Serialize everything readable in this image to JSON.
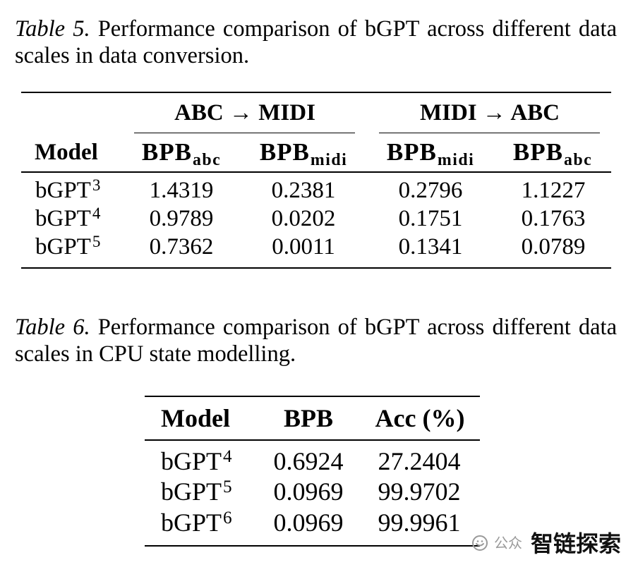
{
  "table5": {
    "caption": {
      "label": "Table 5.",
      "text": "Performance comparison of bGPT across different data scales in data conversion."
    },
    "groups": [
      "ABC → MIDI",
      "MIDI → ABC"
    ],
    "header": {
      "model": "Model",
      "cols": [
        {
          "label": "BPB",
          "sub": "abc"
        },
        {
          "label": "BPB",
          "sub": "midi"
        },
        {
          "label": "BPB",
          "sub": "midi"
        },
        {
          "label": "BPB",
          "sub": "abc"
        }
      ]
    },
    "rows": [
      {
        "model": "bGPT",
        "sup": "3",
        "values": [
          "1.4319",
          "0.2381",
          "0.2796",
          "1.1227"
        ]
      },
      {
        "model": "bGPT",
        "sup": "4",
        "values": [
          "0.9789",
          "0.0202",
          "0.1751",
          "0.1763"
        ]
      },
      {
        "model": "bGPT",
        "sup": "5",
        "values": [
          "0.7362",
          "0.0011",
          "0.1341",
          "0.0789"
        ]
      }
    ]
  },
  "table6": {
    "caption": {
      "label": "Table 6.",
      "text": "Performance comparison of bGPT across different data scales in CPU state modelling."
    },
    "header": {
      "model": "Model",
      "cols": [
        "BPB",
        "Acc (%)"
      ]
    },
    "rows": [
      {
        "model": "bGPT",
        "sup": "4",
        "values": [
          "0.6924",
          "27.2404"
        ]
      },
      {
        "model": "bGPT",
        "sup": "5",
        "values": [
          "0.0969",
          "99.9702"
        ]
      },
      {
        "model": "bGPT",
        "sup": "6",
        "values": [
          "0.0969",
          "99.9961"
        ]
      }
    ]
  },
  "watermark": {
    "icon": "wechat-official-account-icon",
    "prefix": "公众",
    "name": "智链探索"
  }
}
